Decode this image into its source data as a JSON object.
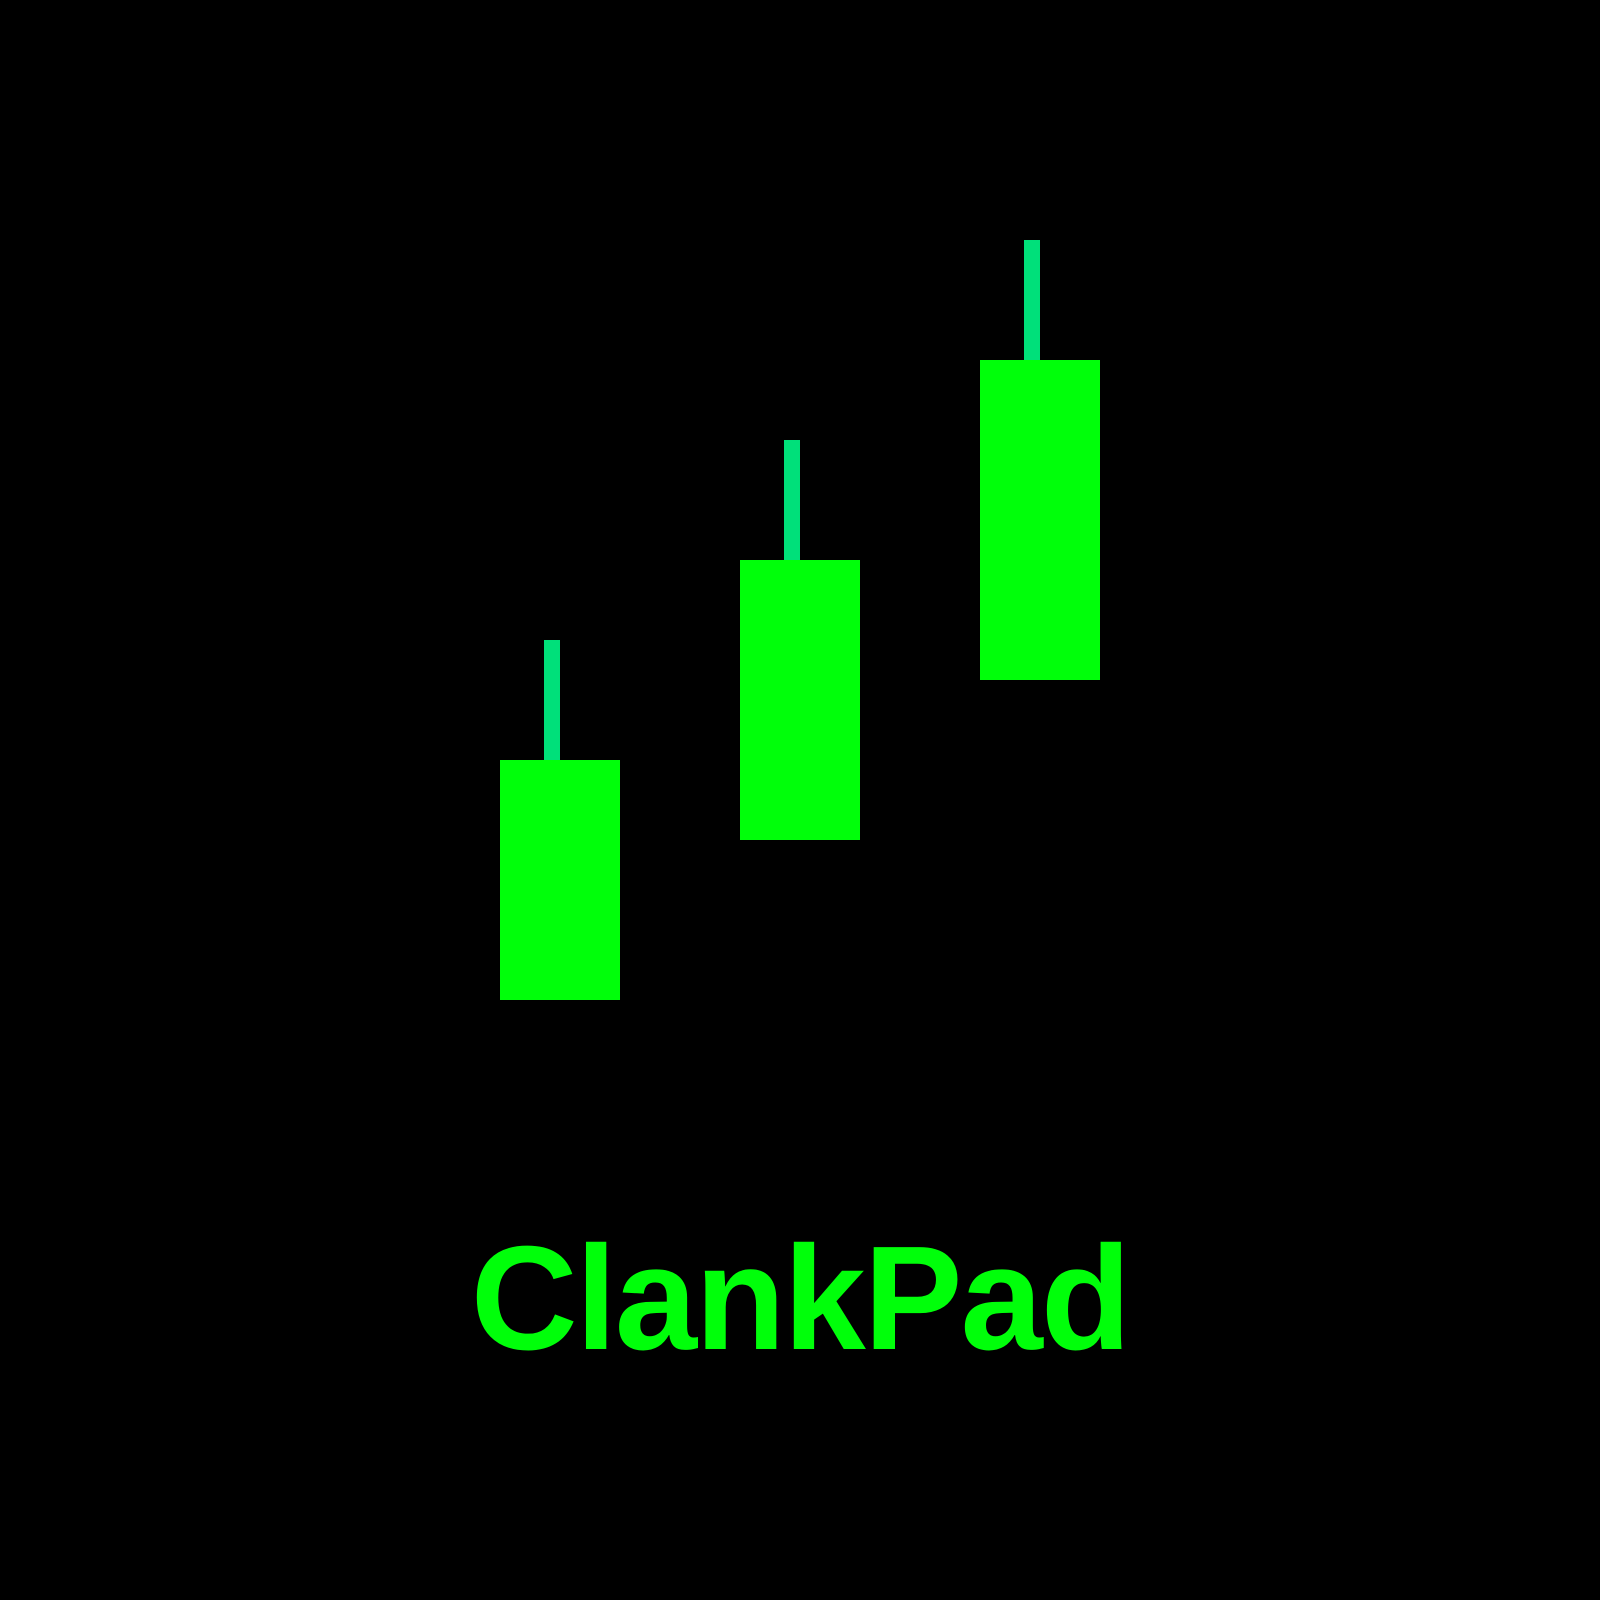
{
  "brand": {
    "name": "ClankPad",
    "colors": {
      "body": "#00ff0a",
      "wick": "#00e07a",
      "background": "#000000"
    }
  },
  "logo_mark": {
    "icon": "candlestick-chart-icon",
    "candles": [
      {
        "name": "candle-1",
        "direction": "up"
      },
      {
        "name": "candle-2",
        "direction": "up"
      },
      {
        "name": "candle-3",
        "direction": "up"
      }
    ]
  }
}
